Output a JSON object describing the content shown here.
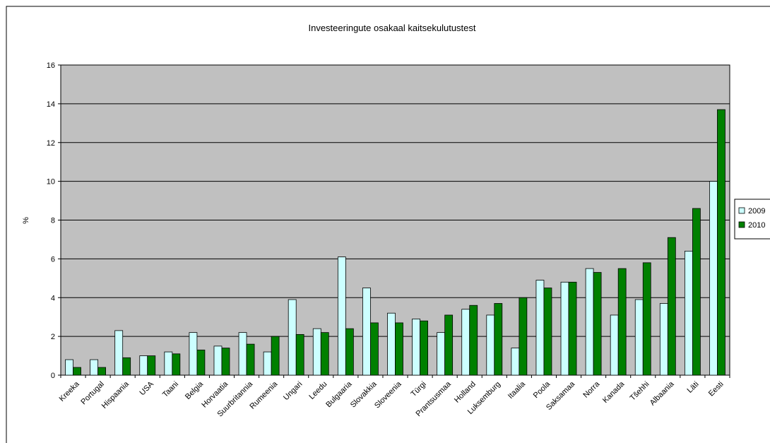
{
  "chart_data": {
    "type": "bar",
    "title": "Investeeringute osakaal kaitsekulutustest",
    "xlabel": "",
    "ylabel": "%",
    "ylim": [
      0,
      16
    ],
    "yticks": [
      0,
      2,
      4,
      6,
      8,
      10,
      12,
      14,
      16
    ],
    "grid": true,
    "legend_position": "right",
    "categories": [
      "Kreeka",
      "Portugal",
      "Hispaania",
      "USA",
      "Taani",
      "Belgia",
      "Horvaatia",
      "Suurbritannia",
      "Rumeenia",
      "Ungari",
      "Leedu",
      "Bulgaaria",
      "Slovakkia",
      "Sloveenia",
      "Türgi",
      "Prantsusmaa",
      "Holland",
      "Luksemburg",
      "Itaalia",
      "Poola",
      "Saksamaa",
      "Norra",
      "Kanada",
      "Tšehhi",
      "Albaania",
      "Läti",
      "Eesti"
    ],
    "series": [
      {
        "name": "2009",
        "color": "#ccffff",
        "values": [
          0.8,
          0.8,
          2.3,
          1.0,
          1.2,
          2.2,
          1.5,
          2.2,
          1.2,
          3.9,
          2.4,
          6.1,
          4.5,
          3.2,
          2.9,
          2.2,
          3.4,
          3.1,
          1.4,
          4.9,
          4.8,
          5.5,
          3.1,
          3.9,
          3.7,
          6.4,
          10.0
        ]
      },
      {
        "name": "2010",
        "color": "#008000",
        "values": [
          0.4,
          0.4,
          0.9,
          1.0,
          1.1,
          1.3,
          1.4,
          1.6,
          2.0,
          2.1,
          2.2,
          2.4,
          2.7,
          2.7,
          2.8,
          3.1,
          3.6,
          3.7,
          4.0,
          4.5,
          4.8,
          5.3,
          5.5,
          5.8,
          7.1,
          8.6,
          13.7
        ]
      }
    ],
    "colors": {
      "plot_background": "#c0c0c0",
      "gridline": "#000000",
      "border": "#000000"
    }
  }
}
